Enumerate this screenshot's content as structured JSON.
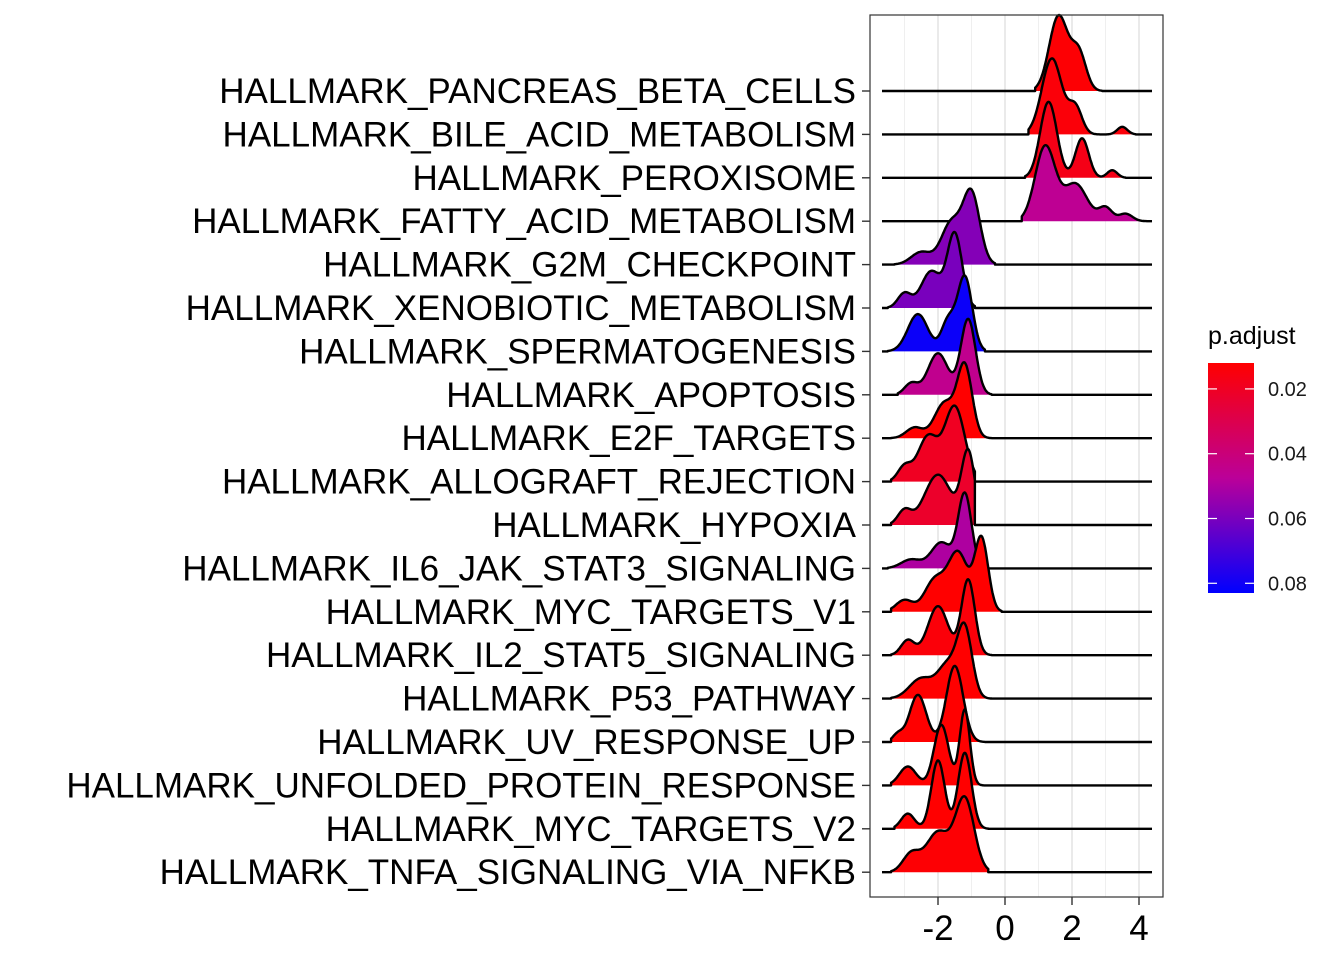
{
  "chart_data": {
    "type": "ridgeline",
    "xlim": [
      -4,
      4.6
    ],
    "x_ticks": [
      -2,
      0,
      2,
      4
    ],
    "x_tick_labels": [
      "-2",
      "0",
      "2",
      "4"
    ],
    "grid": true,
    "legend": {
      "title": "p.adjust",
      "placement": "right",
      "range": [
        0.012,
        0.083
      ],
      "ticks": [
        0.02,
        0.04,
        0.06,
        0.08
      ],
      "tick_labels": [
        "0.02",
        "0.04",
        "0.06",
        "0.08"
      ],
      "low_color": "#FF0000",
      "high_color": "#0000FF"
    },
    "series": [
      {
        "name": "HALLMARK_PANCREAS_BETA_CELLS",
        "p_adjust": 0.013,
        "x_range": [
          0.9,
          2.9
        ],
        "peaks": [
          [
            1.6,
            0.28,
            1.0
          ],
          [
            2.2,
            0.22,
            0.5
          ]
        ]
      },
      {
        "name": "HALLMARK_BILE_ACID_METABOLISM",
        "p_adjust": 0.014,
        "x_range": [
          0.7,
          3.9
        ],
        "peaks": [
          [
            1.4,
            0.3,
            1.0
          ],
          [
            2.1,
            0.2,
            0.35
          ],
          [
            3.5,
            0.15,
            0.1
          ]
        ]
      },
      {
        "name": "HALLMARK_PEROXISOME",
        "p_adjust": 0.017,
        "x_range": [
          0.6,
          3.6
        ],
        "peaks": [
          [
            1.3,
            0.25,
            1.0
          ],
          [
            2.3,
            0.2,
            0.52
          ],
          [
            3.2,
            0.15,
            0.1
          ]
        ]
      },
      {
        "name": "HALLMARK_FATTY_ACID_METABOLISM",
        "p_adjust": 0.046,
        "x_range": [
          0.5,
          4.3
        ],
        "peaks": [
          [
            1.2,
            0.3,
            1.0
          ],
          [
            2.1,
            0.35,
            0.5
          ],
          [
            3.0,
            0.2,
            0.18
          ],
          [
            3.6,
            0.2,
            0.1
          ]
        ]
      },
      {
        "name": "HALLMARK_G2M_CHECKPOINT",
        "p_adjust": 0.058,
        "x_range": [
          -3.3,
          -0.3
        ],
        "peaks": [
          [
            -1.0,
            0.25,
            1.0
          ],
          [
            -1.6,
            0.3,
            0.6
          ],
          [
            -2.5,
            0.3,
            0.18
          ]
        ]
      },
      {
        "name": "HALLMARK_XENOBIOTIC_METABOLISM",
        "p_adjust": 0.06,
        "x_range": [
          -3.5,
          -0.9
        ],
        "peaks": [
          [
            -1.5,
            0.22,
            1.0
          ],
          [
            -2.2,
            0.3,
            0.5
          ],
          [
            -3.0,
            0.2,
            0.2
          ]
        ]
      },
      {
        "name": "HALLMARK_SPERMATOGENESIS",
        "p_adjust": 0.081,
        "x_range": [
          -3.5,
          -0.6
        ],
        "peaks": [
          [
            -1.2,
            0.22,
            1.0
          ],
          [
            -2.6,
            0.3,
            0.5
          ],
          [
            -1.7,
            0.2,
            0.4
          ]
        ]
      },
      {
        "name": "HALLMARK_APOPTOSIS",
        "p_adjust": 0.045,
        "x_range": [
          -3.2,
          -0.4
        ],
        "peaks": [
          [
            -1.1,
            0.22,
            1.0
          ],
          [
            -2.0,
            0.3,
            0.55
          ],
          [
            -2.8,
            0.2,
            0.15
          ]
        ]
      },
      {
        "name": "HALLMARK_E2F_TARGETS",
        "p_adjust": 0.012,
        "x_range": [
          -3.4,
          -0.4
        ],
        "peaks": [
          [
            -1.2,
            0.22,
            1.0
          ],
          [
            -1.8,
            0.3,
            0.5
          ],
          [
            -2.7,
            0.25,
            0.15
          ]
        ]
      },
      {
        "name": "HALLMARK_ALLOGRAFT_REJECTION",
        "p_adjust": 0.02,
        "x_range": [
          -3.4,
          -0.9
        ],
        "peaks": [
          [
            -1.5,
            0.3,
            1.0
          ],
          [
            -2.3,
            0.3,
            0.6
          ],
          [
            -3.0,
            0.2,
            0.2
          ]
        ]
      },
      {
        "name": "HALLMARK_HYPOXIA",
        "p_adjust": 0.022,
        "x_range": [
          -3.4,
          -0.9
        ],
        "peaks": [
          [
            -1.1,
            0.2,
            1.0
          ],
          [
            -2.0,
            0.4,
            0.7
          ],
          [
            -3.0,
            0.2,
            0.2
          ]
        ]
      },
      {
        "name": "HALLMARK_IL6_JAK_STAT3_SIGNALING",
        "p_adjust": 0.05,
        "x_range": [
          -3.5,
          -0.6
        ],
        "peaks": [
          [
            -1.2,
            0.2,
            1.0
          ],
          [
            -1.9,
            0.3,
            0.35
          ],
          [
            -2.8,
            0.3,
            0.12
          ]
        ]
      },
      {
        "name": "HALLMARK_MYC_TARGETS_V1",
        "p_adjust": 0.012,
        "x_range": [
          -3.4,
          -0.1
        ],
        "peaks": [
          [
            -0.7,
            0.2,
            0.92
          ],
          [
            -1.4,
            0.3,
            0.75
          ],
          [
            -2.1,
            0.3,
            0.4
          ],
          [
            -3.0,
            0.25,
            0.15
          ]
        ]
      },
      {
        "name": "HALLMARK_IL2_STAT5_SIGNALING",
        "p_adjust": 0.014,
        "x_range": [
          -3.4,
          -0.4
        ],
        "peaks": [
          [
            -1.1,
            0.2,
            1.0
          ],
          [
            -2.0,
            0.3,
            0.65
          ],
          [
            -2.9,
            0.2,
            0.2
          ]
        ]
      },
      {
        "name": "HALLMARK_P53_PATHWAY",
        "p_adjust": 0.012,
        "x_range": [
          -3.4,
          -0.4
        ],
        "peaks": [
          [
            -1.2,
            0.22,
            1.0
          ],
          [
            -1.7,
            0.3,
            0.5
          ],
          [
            -2.5,
            0.35,
            0.3
          ]
        ]
      },
      {
        "name": "HALLMARK_UV_RESPONSE_UP",
        "p_adjust": 0.012,
        "x_range": [
          -3.4,
          -0.6
        ],
        "peaks": [
          [
            -1.5,
            0.25,
            1.0
          ],
          [
            -2.6,
            0.25,
            0.62
          ],
          [
            -3.2,
            0.15,
            0.1
          ]
        ]
      },
      {
        "name": "HALLMARK_UNFOLDED_PROTEIN_RESPONSE",
        "p_adjust": 0.012,
        "x_range": [
          -3.4,
          -0.6
        ],
        "peaks": [
          [
            -1.2,
            0.15,
            1.0
          ],
          [
            -1.9,
            0.22,
            0.8
          ],
          [
            -2.9,
            0.25,
            0.25
          ]
        ]
      },
      {
        "name": "HALLMARK_MYC_TARGETS_V2",
        "p_adjust": 0.012,
        "x_range": [
          -3.3,
          -0.5
        ],
        "peaks": [
          [
            -1.2,
            0.2,
            1.0
          ],
          [
            -2.0,
            0.2,
            0.9
          ],
          [
            -2.9,
            0.2,
            0.2
          ]
        ]
      },
      {
        "name": "HALLMARK_TNFA_SIGNALING_VIA_NFKB",
        "p_adjust": 0.013,
        "x_range": [
          -3.4,
          -0.5
        ],
        "peaks": [
          [
            -1.2,
            0.28,
            1.0
          ],
          [
            -2.0,
            0.35,
            0.55
          ],
          [
            -2.8,
            0.25,
            0.25
          ]
        ]
      }
    ]
  }
}
